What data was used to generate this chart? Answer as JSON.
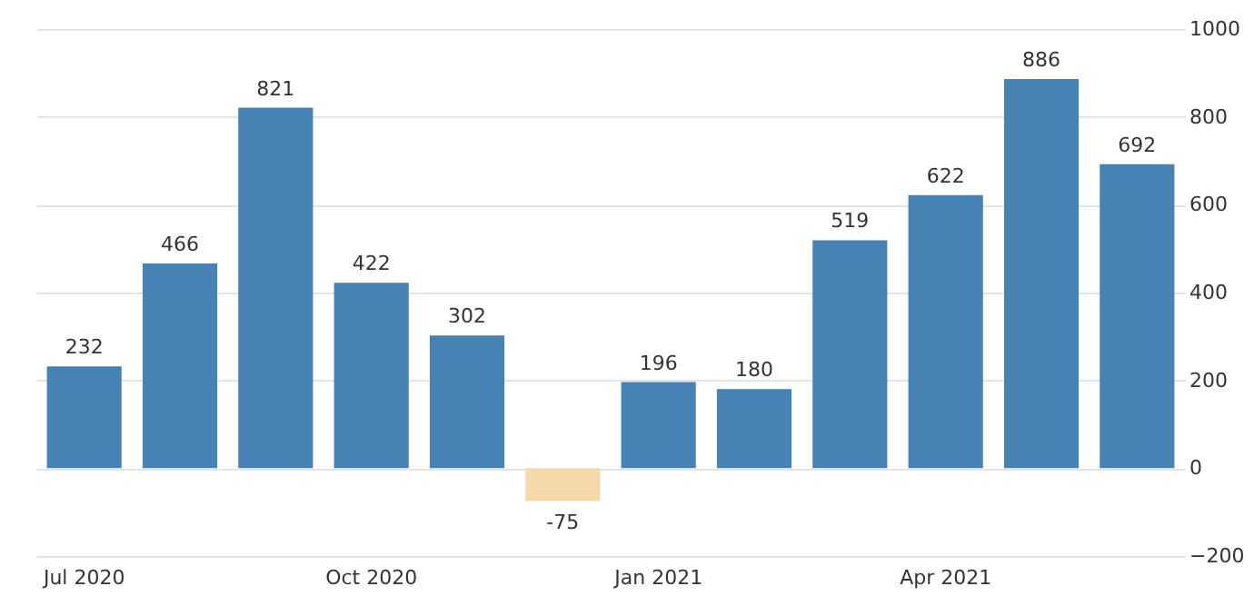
{
  "chart_data": {
    "type": "bar",
    "categories": [
      "Jul 2020",
      null,
      null,
      "Oct 2020",
      null,
      null,
      "Jan 2021",
      null,
      null,
      "Apr 2021",
      null,
      null
    ],
    "values": [
      232,
      466,
      821,
      422,
      302,
      -75,
      196,
      180,
      519,
      622,
      886,
      692
    ],
    "colors": [
      "#4682b4",
      "#4682b4",
      "#4682b4",
      "#4682b4",
      "#4682b4",
      "#f5d9ab",
      "#4682b4",
      "#4682b4",
      "#4682b4",
      "#4682b4",
      "#4682b4",
      "#4682b4"
    ],
    "ylim": [
      -200,
      1000
    ],
    "yticks": [
      -200,
      0,
      200,
      400,
      600,
      800,
      1000
    ],
    "grid": "y",
    "data_labels": true
  }
}
